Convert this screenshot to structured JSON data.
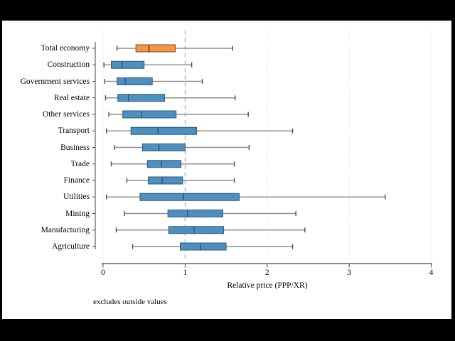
{
  "chart_data": {
    "type": "box",
    "orientation": "horizontal",
    "title": "",
    "xlabel": "Relative price (PPP/XR)",
    "note": "excludes outside values",
    "xlim": [
      0,
      4
    ],
    "x_ticks": [
      0,
      1,
      2,
      3,
      4
    ],
    "gridlines_at": [
      0,
      2,
      3,
      4
    ],
    "reference_line_x": 1,
    "grid": true,
    "legend": false,
    "categories": [
      "Total economy",
      "Construction",
      "Government services",
      "Real estate",
      "Other services",
      "Transport",
      "Business",
      "Trade",
      "Finance",
      "Utilities",
      "Mining",
      "Manufacturing",
      "Agriculture"
    ],
    "boxes": [
      {
        "category": "Total economy",
        "whisker_low": 0.17,
        "q1": 0.4,
        "median": 0.56,
        "q3": 0.88,
        "whisker_high": 1.58,
        "highlight": true
      },
      {
        "category": "Construction",
        "whisker_low": 0.01,
        "q1": 0.1,
        "median": 0.23,
        "q3": 0.5,
        "whisker_high": 1.08,
        "highlight": false
      },
      {
        "category": "Government services",
        "whisker_low": 0.02,
        "q1": 0.17,
        "median": 0.27,
        "q3": 0.6,
        "whisker_high": 1.21,
        "highlight": false
      },
      {
        "category": "Real estate",
        "whisker_low": 0.03,
        "q1": 0.18,
        "median": 0.31,
        "q3": 0.75,
        "whisker_high": 1.61,
        "highlight": false
      },
      {
        "category": "Other services",
        "whisker_low": 0.07,
        "q1": 0.24,
        "median": 0.47,
        "q3": 0.89,
        "whisker_high": 1.77,
        "highlight": false
      },
      {
        "category": "Transport",
        "whisker_low": 0.04,
        "q1": 0.34,
        "median": 0.67,
        "q3": 1.14,
        "whisker_high": 2.31,
        "highlight": false
      },
      {
        "category": "Business",
        "whisker_low": 0.14,
        "q1": 0.48,
        "median": 0.68,
        "q3": 1.0,
        "whisker_high": 1.78,
        "highlight": false
      },
      {
        "category": "Trade",
        "whisker_low": 0.1,
        "q1": 0.54,
        "median": 0.71,
        "q3": 0.95,
        "whisker_high": 1.6,
        "highlight": false
      },
      {
        "category": "Finance",
        "whisker_low": 0.29,
        "q1": 0.55,
        "median": 0.72,
        "q3": 0.97,
        "whisker_high": 1.6,
        "highlight": false
      },
      {
        "category": "Utilities",
        "whisker_low": 0.04,
        "q1": 0.45,
        "median": 0.98,
        "q3": 1.66,
        "whisker_high": 3.44,
        "highlight": false
      },
      {
        "category": "Mining",
        "whisker_low": 0.26,
        "q1": 0.79,
        "median": 1.03,
        "q3": 1.46,
        "whisker_high": 2.35,
        "highlight": false
      },
      {
        "category": "Manufacturing",
        "whisker_low": 0.16,
        "q1": 0.8,
        "median": 1.11,
        "q3": 1.47,
        "whisker_high": 2.46,
        "highlight": false
      },
      {
        "category": "Agriculture",
        "whisker_low": 0.36,
        "q1": 0.94,
        "median": 1.19,
        "q3": 1.5,
        "whisker_high": 2.31,
        "highlight": false
      }
    ],
    "colors": {
      "box_fill": "#4f8fbf",
      "box_border": "#2d5a7a",
      "highlight_fill": "#f8953c",
      "highlight_border": "#5d5142",
      "whisker_line": "#8f8f8f",
      "whisker_cap": "#4d4d4d",
      "gridline": "#dcdcdc",
      "reference_line": "#b3b3b3",
      "axis_line": "#404040",
      "text": "#000000",
      "plot_bg": "#ffffff",
      "window_bg": "#000000"
    }
  }
}
